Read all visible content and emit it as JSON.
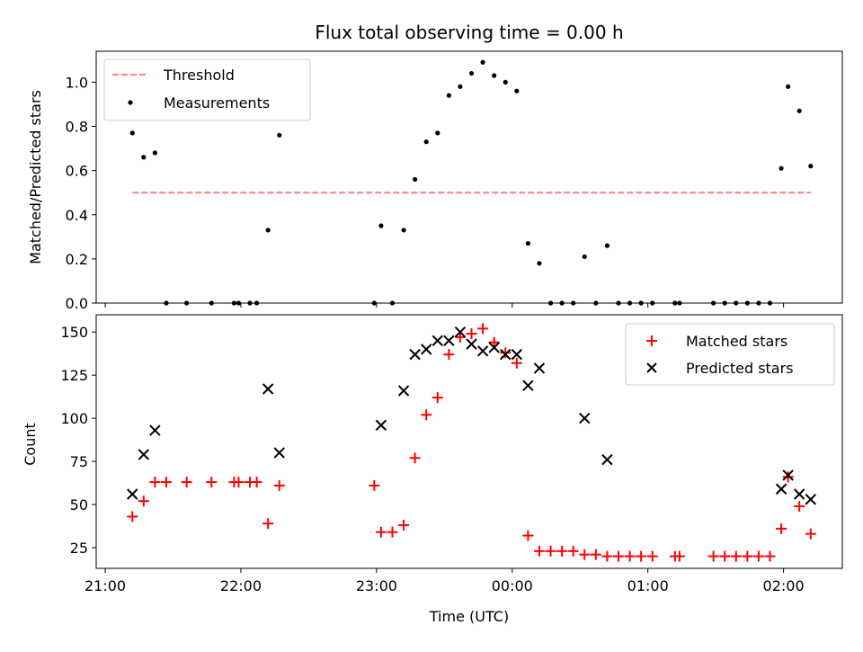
{
  "chart_data": [
    {
      "type": "scatter",
      "title": "Flux total observing time = 0.00 h",
      "xlabel": "",
      "ylabel": "Matched/Predicted stars",
      "ylim": [
        0,
        1.14
      ],
      "xlim": [
        "20:56",
        "02:26"
      ],
      "yticks": [
        0.0,
        0.2,
        0.4,
        0.6,
        0.8,
        1.0
      ],
      "ytick_labels": [
        "0.0",
        "0.2",
        "0.4",
        "0.6",
        "0.8",
        "1.0"
      ],
      "grid": false,
      "legend_placement": "upper-left",
      "series": [
        {
          "name": "Threshold",
          "kind": "dashed-line",
          "color": "#ff8080",
          "points": [
            {
              "x": "21:12",
              "y": 0.5
            },
            {
              "x": "02:12",
              "y": 0.5
            }
          ]
        },
        {
          "name": "Measurements",
          "kind": "dot",
          "color": "#000000",
          "points": [
            {
              "x": "21:12",
              "y": 0.77
            },
            {
              "x": "21:17",
              "y": 0.66
            },
            {
              "x": "21:22",
              "y": 0.68
            },
            {
              "x": "21:27",
              "y": 0.0
            },
            {
              "x": "21:36",
              "y": 0.0
            },
            {
              "x": "21:47",
              "y": 0.0
            },
            {
              "x": "21:57",
              "y": 0.0
            },
            {
              "x": "21:59",
              "y": 0.0
            },
            {
              "x": "22:04",
              "y": 0.0
            },
            {
              "x": "22:07",
              "y": 0.0
            },
            {
              "x": "22:12",
              "y": 0.33
            },
            {
              "x": "22:17",
              "y": 0.76
            },
            {
              "x": "22:59",
              "y": 0.0
            },
            {
              "x": "23:02",
              "y": 0.35
            },
            {
              "x": "23:07",
              "y": 0.0
            },
            {
              "x": "23:12",
              "y": 0.33
            },
            {
              "x": "23:17",
              "y": 0.56
            },
            {
              "x": "23:22",
              "y": 0.73
            },
            {
              "x": "23:27",
              "y": 0.77
            },
            {
              "x": "23:32",
              "y": 0.94
            },
            {
              "x": "23:37",
              "y": 0.98
            },
            {
              "x": "23:42",
              "y": 1.04
            },
            {
              "x": "23:47",
              "y": 1.09
            },
            {
              "x": "23:52",
              "y": 1.03
            },
            {
              "x": "23:57",
              "y": 1.0
            },
            {
              "x": "00:02",
              "y": 0.96
            },
            {
              "x": "00:07",
              "y": 0.27
            },
            {
              "x": "00:12",
              "y": 0.18
            },
            {
              "x": "00:17",
              "y": 0.0
            },
            {
              "x": "00:22",
              "y": 0.0
            },
            {
              "x": "00:27",
              "y": 0.0
            },
            {
              "x": "00:32",
              "y": 0.21
            },
            {
              "x": "00:37",
              "y": 0.0
            },
            {
              "x": "00:42",
              "y": 0.26
            },
            {
              "x": "00:47",
              "y": 0.0
            },
            {
              "x": "00:52",
              "y": 0.0
            },
            {
              "x": "00:57",
              "y": 0.0
            },
            {
              "x": "01:02",
              "y": 0.0
            },
            {
              "x": "01:12",
              "y": 0.0
            },
            {
              "x": "01:14",
              "y": 0.0
            },
            {
              "x": "01:29",
              "y": 0.0
            },
            {
              "x": "01:34",
              "y": 0.0
            },
            {
              "x": "01:39",
              "y": 0.0
            },
            {
              "x": "01:44",
              "y": 0.0
            },
            {
              "x": "01:49",
              "y": 0.0
            },
            {
              "x": "01:54",
              "y": 0.0
            },
            {
              "x": "01:59",
              "y": 0.61
            },
            {
              "x": "02:02",
              "y": 0.98
            },
            {
              "x": "02:07",
              "y": 0.87
            },
            {
              "x": "02:12",
              "y": 0.62
            }
          ]
        }
      ]
    },
    {
      "type": "scatter",
      "title": "",
      "xlabel": "Time (UTC)",
      "ylabel": "Count",
      "ylim": [
        13,
        160
      ],
      "xlim": [
        "20:56",
        "02:26"
      ],
      "yticks": [
        25,
        50,
        75,
        100,
        125,
        150
      ],
      "ytick_labels": [
        "25",
        "50",
        "75",
        "100",
        "125",
        "150"
      ],
      "xticks": [
        "21:00",
        "22:00",
        "23:00",
        "00:00",
        "01:00",
        "02:00"
      ],
      "xtick_labels": [
        "21:00",
        "22:00",
        "23:00",
        "00:00",
        "01:00",
        "02:00"
      ],
      "grid": false,
      "legend_placement": "upper-right",
      "series": [
        {
          "name": "Matched stars",
          "kind": "plus",
          "color": "#ff0000",
          "points": [
            {
              "x": "21:12",
              "y": 43
            },
            {
              "x": "21:17",
              "y": 52
            },
            {
              "x": "21:22",
              "y": 63
            },
            {
              "x": "21:27",
              "y": 63
            },
            {
              "x": "21:36",
              "y": 63
            },
            {
              "x": "21:47",
              "y": 63
            },
            {
              "x": "21:57",
              "y": 63
            },
            {
              "x": "21:59",
              "y": 63
            },
            {
              "x": "22:04",
              "y": 63
            },
            {
              "x": "22:07",
              "y": 63
            },
            {
              "x": "22:12",
              "y": 39
            },
            {
              "x": "22:17",
              "y": 61
            },
            {
              "x": "22:59",
              "y": 61
            },
            {
              "x": "23:02",
              "y": 34
            },
            {
              "x": "23:07",
              "y": 34
            },
            {
              "x": "23:12",
              "y": 38
            },
            {
              "x": "23:17",
              "y": 77
            },
            {
              "x": "23:22",
              "y": 102
            },
            {
              "x": "23:27",
              "y": 112
            },
            {
              "x": "23:32",
              "y": 137
            },
            {
              "x": "23:37",
              "y": 147
            },
            {
              "x": "23:42",
              "y": 149
            },
            {
              "x": "23:47",
              "y": 152
            },
            {
              "x": "23:52",
              "y": 144
            },
            {
              "x": "23:57",
              "y": 138
            },
            {
              "x": "00:02",
              "y": 132
            },
            {
              "x": "00:07",
              "y": 32
            },
            {
              "x": "00:12",
              "y": 23
            },
            {
              "x": "00:17",
              "y": 23
            },
            {
              "x": "00:22",
              "y": 23
            },
            {
              "x": "00:27",
              "y": 23
            },
            {
              "x": "00:32",
              "y": 21
            },
            {
              "x": "00:37",
              "y": 21
            },
            {
              "x": "00:42",
              "y": 20
            },
            {
              "x": "00:47",
              "y": 20
            },
            {
              "x": "00:52",
              "y": 20
            },
            {
              "x": "00:57",
              "y": 20
            },
            {
              "x": "01:02",
              "y": 20
            },
            {
              "x": "01:12",
              "y": 20
            },
            {
              "x": "01:14",
              "y": 20
            },
            {
              "x": "01:29",
              "y": 20
            },
            {
              "x": "01:34",
              "y": 20
            },
            {
              "x": "01:39",
              "y": 20
            },
            {
              "x": "01:44",
              "y": 20
            },
            {
              "x": "01:49",
              "y": 20
            },
            {
              "x": "01:54",
              "y": 20
            },
            {
              "x": "01:59",
              "y": 36
            },
            {
              "x": "02:02",
              "y": 66
            },
            {
              "x": "02:07",
              "y": 49
            },
            {
              "x": "02:12",
              "y": 33
            }
          ]
        },
        {
          "name": "Predicted stars",
          "kind": "x",
          "color": "#000000",
          "points": [
            {
              "x": "21:12",
              "y": 56
            },
            {
              "x": "21:17",
              "y": 79
            },
            {
              "x": "21:22",
              "y": 93
            },
            {
              "x": "22:12",
              "y": 117
            },
            {
              "x": "22:17",
              "y": 80
            },
            {
              "x": "23:02",
              "y": 96
            },
            {
              "x": "23:12",
              "y": 116
            },
            {
              "x": "23:17",
              "y": 137
            },
            {
              "x": "23:22",
              "y": 140
            },
            {
              "x": "23:27",
              "y": 145
            },
            {
              "x": "23:32",
              "y": 145
            },
            {
              "x": "23:37",
              "y": 150
            },
            {
              "x": "23:42",
              "y": 143
            },
            {
              "x": "23:47",
              "y": 139
            },
            {
              "x": "23:52",
              "y": 141
            },
            {
              "x": "23:57",
              "y": 137
            },
            {
              "x": "00:02",
              "y": 137
            },
            {
              "x": "00:07",
              "y": 119
            },
            {
              "x": "00:12",
              "y": 129
            },
            {
              "x": "00:32",
              "y": 100
            },
            {
              "x": "00:42",
              "y": 76
            },
            {
              "x": "01:59",
              "y": 59
            },
            {
              "x": "02:02",
              "y": 67
            },
            {
              "x": "02:07",
              "y": 56
            },
            {
              "x": "02:12",
              "y": 53
            }
          ]
        }
      ]
    }
  ]
}
